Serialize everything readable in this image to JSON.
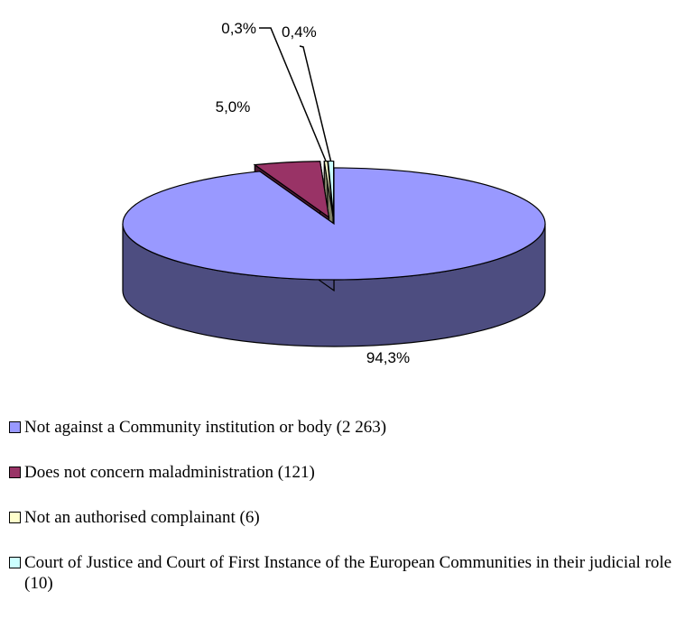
{
  "chart_data": {
    "type": "pie",
    "style": "3d-exploded",
    "categories": [
      "Not against a Community institution or body (2 263)",
      "Does not concern maladministration (121)",
      "Not an authorised complainant (6)",
      "Court of Justice and Court of First Instance of the European Communities in their judicial role (10)"
    ],
    "values": [
      2263,
      121,
      6,
      10
    ],
    "percent_labels": [
      "94,3%",
      "5,0%",
      "0,3%",
      "0,4%"
    ],
    "colors": [
      "#9999ff",
      "#993366",
      "#ffffcc",
      "#ccffff"
    ],
    "side_colors": [
      "#4d4d80",
      "#4d1a33",
      "#808066",
      "#668080"
    ],
    "title": "",
    "legend_position": "bottom"
  }
}
